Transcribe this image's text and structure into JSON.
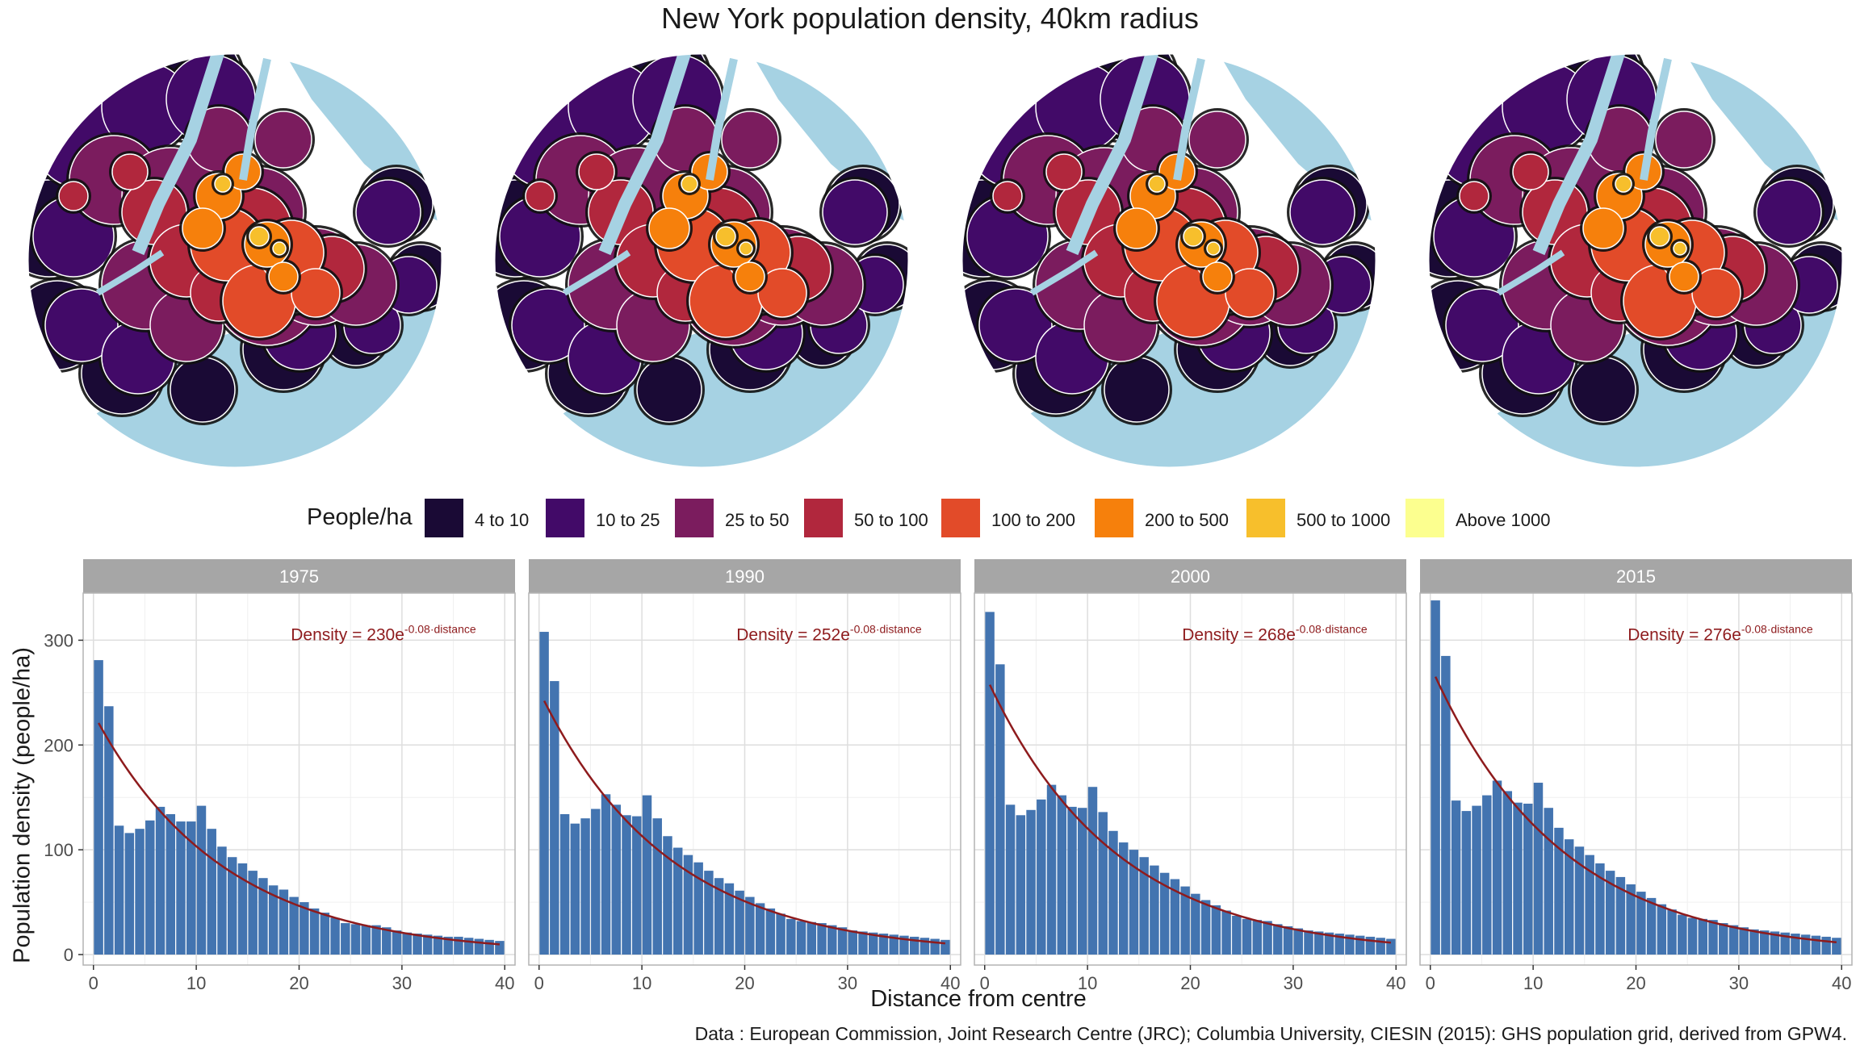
{
  "title": "New York population density, 40km radius",
  "legend": {
    "title": "People/ha",
    "items": [
      {
        "label": "4 to 10",
        "color": "#1a0a35"
      },
      {
        "label": "10 to 25",
        "color": "#420a68"
      },
      {
        "label": "25 to 50",
        "color": "#7b1c5e"
      },
      {
        "label": "50 to 100",
        "color": "#b1273d"
      },
      {
        "label": "100 to 200",
        "color": "#e24b29"
      },
      {
        "label": "200 to 500",
        "color": "#f6800c"
      },
      {
        "label": "500 to 1000",
        "color": "#f7bf2c"
      },
      {
        "label": "Above 1000",
        "color": "#fcff8f"
      }
    ]
  },
  "map_colors": {
    "water": "#a6d2e3",
    "land": "#ffffff"
  },
  "chart_data": {
    "type": "bar",
    "xlabel": "Distance from centre",
    "ylabel": "Population density (people/ha)",
    "xlim": [
      -1,
      41
    ],
    "ylim": [
      0,
      345
    ],
    "x_ticks": [
      0,
      10,
      20,
      30,
      40
    ],
    "y_ticks": [
      0,
      100,
      200,
      300
    ],
    "bar_color": "#4374b0",
    "curve_color": "#8e1b1d",
    "grid": true,
    "x": [
      0.5,
      1.5,
      2.5,
      3.5,
      4.5,
      5.5,
      6.5,
      7.5,
      8.5,
      9.5,
      10.5,
      11.5,
      12.5,
      13.5,
      14.5,
      15.5,
      16.5,
      17.5,
      18.5,
      19.5,
      20.5,
      21.5,
      22.5,
      23.5,
      24.5,
      25.5,
      26.5,
      27.5,
      28.5,
      29.5,
      30.5,
      31.5,
      32.5,
      33.5,
      34.5,
      35.5,
      36.5,
      37.5,
      38.5,
      39.5
    ],
    "series": [
      {
        "name": "1975",
        "fit_label": "Density = 230e",
        "fit_exponent": "-0.08·distance",
        "fit_a": 230,
        "fit_b": -0.08,
        "values": [
          281,
          237,
          123,
          116,
          120,
          128,
          141,
          134,
          127,
          127,
          142,
          120,
          103,
          93,
          87,
          80,
          73,
          66,
          62,
          55,
          50,
          44,
          40,
          35,
          30,
          29,
          28,
          28,
          26,
          23,
          21,
          20,
          19,
          18,
          17,
          17,
          16,
          15,
          14,
          13
        ]
      },
      {
        "name": "1990",
        "fit_label": "Density = 252e",
        "fit_exponent": "-0.08·distance",
        "fit_a": 252,
        "fit_b": -0.08,
        "values": [
          308,
          261,
          134,
          125,
          130,
          139,
          153,
          143,
          133,
          132,
          152,
          130,
          113,
          102,
          95,
          88,
          80,
          73,
          68,
          61,
          55,
          49,
          44,
          39,
          34,
          32,
          31,
          30,
          28,
          26,
          23,
          22,
          21,
          20,
          19,
          18,
          17,
          16,
          15,
          14
        ]
      },
      {
        "name": "2000",
        "fit_label": "Density = 268e",
        "fit_exponent": "-0.08·distance",
        "fit_a": 268,
        "fit_b": -0.08,
        "values": [
          327,
          277,
          143,
          133,
          138,
          148,
          162,
          152,
          141,
          140,
          160,
          136,
          118,
          107,
          100,
          93,
          85,
          78,
          72,
          65,
          58,
          52,
          47,
          42,
          37,
          34,
          33,
          32,
          29,
          27,
          25,
          23,
          22,
          21,
          20,
          19,
          18,
          17,
          16,
          15
        ]
      },
      {
        "name": "2015",
        "fit_label": "Density = 276e",
        "fit_exponent": "-0.08·distance",
        "fit_a": 276,
        "fit_b": -0.08,
        "values": [
          338,
          285,
          147,
          137,
          142,
          152,
          166,
          156,
          145,
          144,
          164,
          140,
          121,
          110,
          103,
          95,
          87,
          80,
          74,
          67,
          60,
          54,
          48,
          43,
          38,
          35,
          34,
          33,
          30,
          28,
          26,
          24,
          23,
          22,
          21,
          20,
          19,
          18,
          17,
          16
        ]
      }
    ]
  },
  "source": "Data : European Commission, Joint Research Centre (JRC); Columbia University, CIESIN (2015): GHS population grid, derived from GPW4."
}
